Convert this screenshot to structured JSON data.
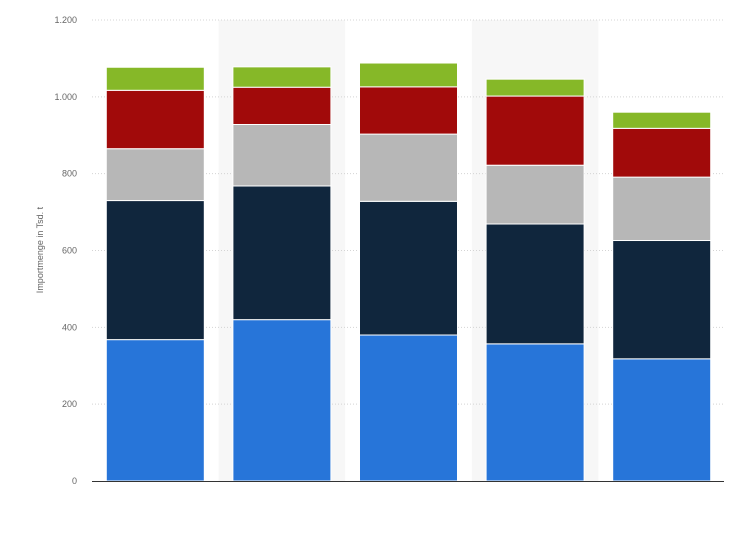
{
  "chart_data": {
    "type": "bar",
    "stacked": true,
    "categories": [
      "",
      "",
      "",
      "",
      ""
    ],
    "ylabel": "Importmenge in Tsd. t",
    "ylim": [
      0,
      1200
    ],
    "yticks": [
      0,
      200,
      400,
      600,
      800,
      1000,
      1200
    ],
    "ytick_labels": [
      "0",
      "200",
      "400",
      "600",
      "800",
      "1.000",
      "1.200"
    ],
    "grid": true,
    "legend": "none",
    "series": [
      {
        "color": "#2775d9",
        "values": [
          368,
          420,
          380,
          357,
          318
        ]
      },
      {
        "color": "#10263d",
        "values": [
          362,
          348,
          348,
          312,
          308
        ]
      },
      {
        "color": "#b7b7b7",
        "values": [
          135,
          160,
          175,
          153,
          165
        ]
      },
      {
        "color": "#a10a0a",
        "values": [
          152,
          97,
          123,
          180,
          127
        ]
      },
      {
        "color": "#86b828",
        "values": [
          60,
          53,
          62,
          44,
          42
        ]
      }
    ]
  }
}
